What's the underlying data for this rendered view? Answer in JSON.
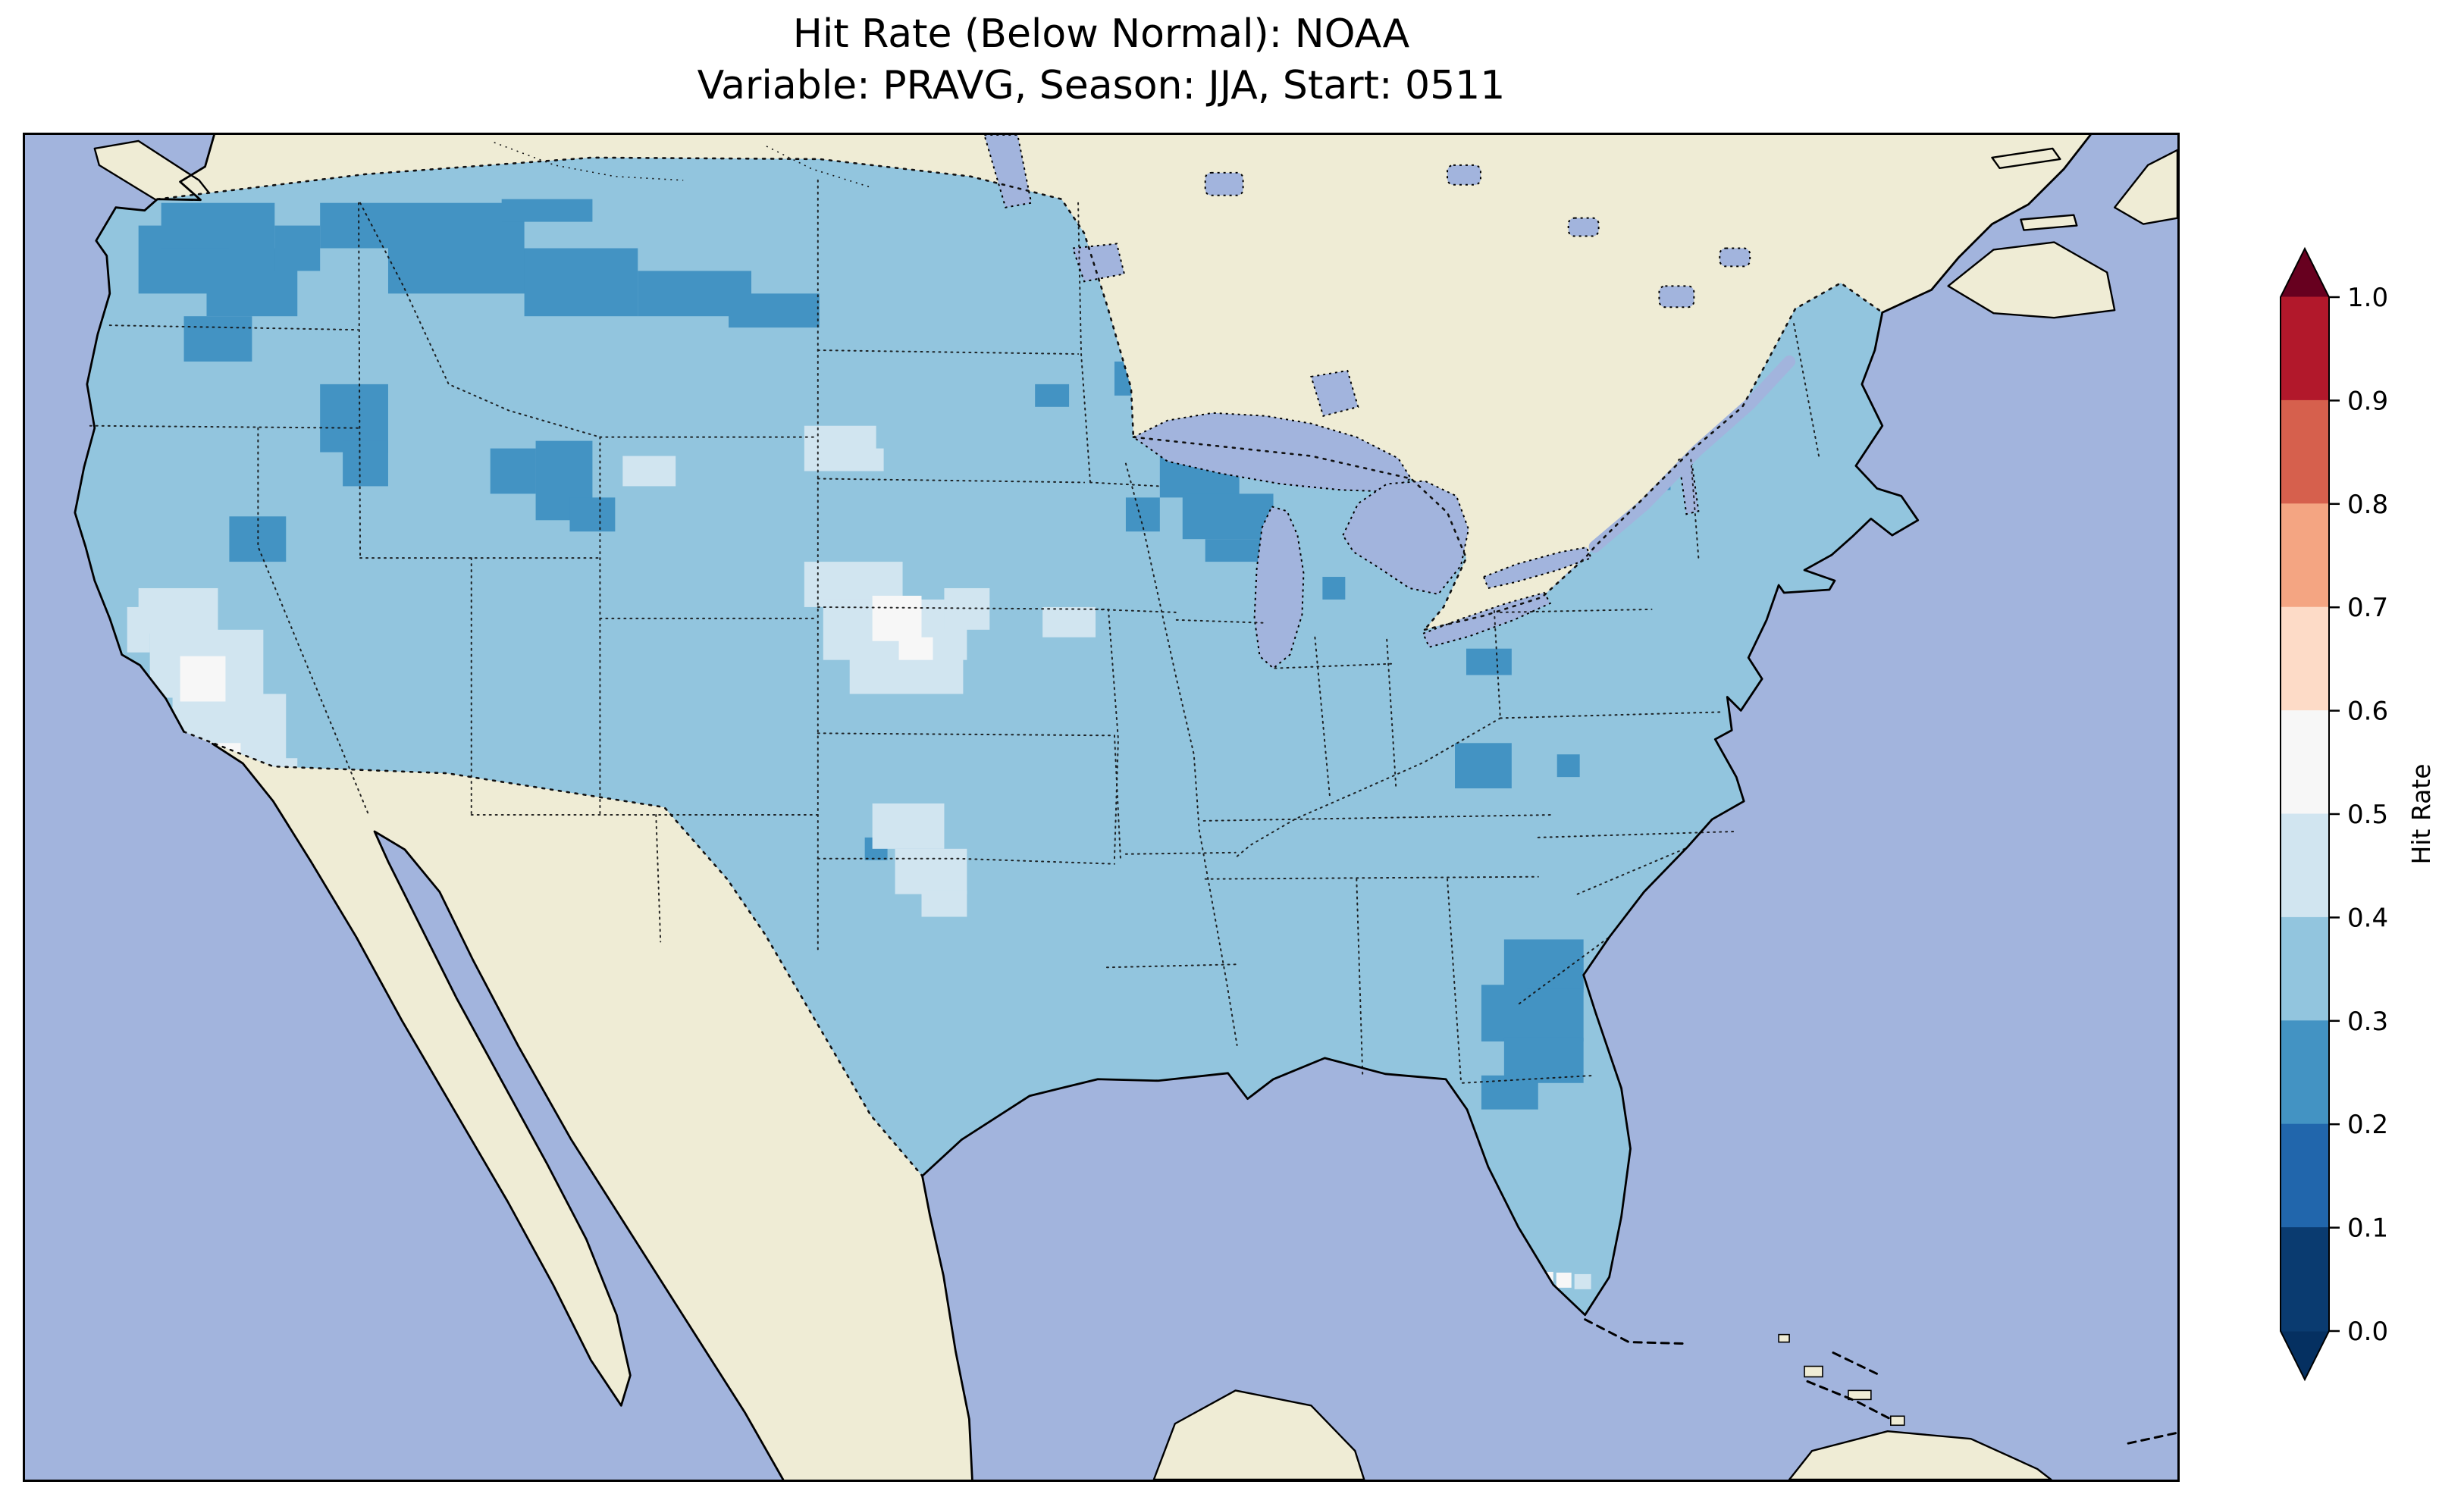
{
  "figure": {
    "title_line1": "Hit Rate (Below Normal): NOAA",
    "title_line2": "Variable: PRAVG, Season: JJA, Start: 0511"
  },
  "colorbar": {
    "label": "Hit Rate",
    "tick_labels": [
      "1.0",
      "0.9",
      "0.8",
      "0.7",
      "0.6",
      "0.5",
      "0.4",
      "0.3",
      "0.2",
      "0.1",
      "0.0"
    ],
    "segments_top_to_bottom": [
      "#b2182b",
      "#d6604d",
      "#f4a582",
      "#fddbc7",
      "#f7f7f7",
      "#d1e5f0",
      "#92c5de",
      "#4393c3",
      "#2166ac",
      "#0a3b70"
    ],
    "extend_over_color": "#67001f",
    "extend_under_color": "#053061",
    "orientation": "vertical",
    "extend": "both"
  },
  "map_colors": {
    "ocean": "#a2b4dd",
    "land": "#efecd5",
    "lake": "#a2b4dd",
    "coastline": "#000000",
    "border": "#111111"
  },
  "chart_data": {
    "type": "heatmap",
    "title": "Hit Rate (Below Normal): NOAA",
    "subtitle": "Variable: PRAVG, Season: JJA, Start: 0511",
    "colorbar_label": "Hit Rate",
    "value_range": [
      0.0,
      1.0
    ],
    "tick_step": 0.1,
    "legend_position": "right",
    "projection": "conus-lambert-conformal",
    "bins": [
      {
        "range": [
          0.0,
          0.1
        ],
        "color": "#0a3b70"
      },
      {
        "range": [
          0.1,
          0.2
        ],
        "color": "#2166ac"
      },
      {
        "range": [
          0.2,
          0.3
        ],
        "color": "#4393c3"
      },
      {
        "range": [
          0.3,
          0.4
        ],
        "color": "#92c5de"
      },
      {
        "range": [
          0.4,
          0.5
        ],
        "color": "#d1e5f0"
      },
      {
        "range": [
          0.5,
          0.6
        ],
        "color": "#f7f7f7"
      },
      {
        "range": [
          0.6,
          0.7
        ],
        "color": "#fddbc7"
      },
      {
        "range": [
          0.7,
          0.8
        ],
        "color": "#f4a582"
      },
      {
        "range": [
          0.8,
          0.9
        ],
        "color": "#d6604d"
      },
      {
        "range": [
          0.9,
          1.0
        ],
        "color": "#b2182b"
      }
    ],
    "base": {
      "range": [
        0.3,
        0.4
      ],
      "value": 0.35,
      "note": "dominant hit-rate bin across most of CONUS"
    },
    "regions": [
      {
        "name": "pacific-northwest",
        "range": [
          0.2,
          0.3
        ],
        "value": 0.25,
        "rects": [
          [
            150,
            120,
            120,
            90
          ],
          [
            180,
            90,
            150,
            60
          ],
          [
            240,
            150,
            120,
            90
          ],
          [
            210,
            240,
            90,
            60
          ],
          [
            330,
            120,
            60,
            60
          ]
        ]
      },
      {
        "name": "northern-rockies-border",
        "range": [
          0.2,
          0.3
        ],
        "value": 0.25,
        "rects": [
          [
            390,
            90,
            270,
            60
          ],
          [
            480,
            150,
            240,
            60
          ],
          [
            660,
            150,
            150,
            90
          ],
          [
            810,
            180,
            150,
            60
          ],
          [
            930,
            210,
            120,
            45
          ],
          [
            630,
            85,
            120,
            30
          ]
        ]
      },
      {
        "name": "central-idaho",
        "range": [
          0.2,
          0.3
        ],
        "value": 0.25,
        "rects": [
          [
            390,
            330,
            90,
            90
          ],
          [
            420,
            405,
            60,
            60
          ]
        ]
      },
      {
        "name": "bighorn-mountains",
        "range": [
          0.2,
          0.3
        ],
        "value": 0.25,
        "rects": [
          [
            675,
            405,
            75,
            105
          ],
          [
            720,
            480,
            60,
            45
          ]
        ]
      },
      {
        "name": "northeast-nevada",
        "range": [
          0.2,
          0.3
        ],
        "value": 0.25,
        "rects": [
          [
            270,
            505,
            75,
            60
          ]
        ]
      },
      {
        "name": "utah-wasatch",
        "range": [
          0.2,
          0.3
        ],
        "value": 0.25,
        "rects": [
          [
            615,
            415,
            60,
            60
          ]
        ]
      },
      {
        "name": "upper-midwest-wisconsin",
        "range": [
          0.2,
          0.3
        ],
        "value": 0.25,
        "rects": [
          [
            1500,
            420,
            105,
            60
          ],
          [
            1530,
            475,
            120,
            60
          ],
          [
            1455,
            480,
            45,
            45
          ],
          [
            1560,
            535,
            75,
            30
          ],
          [
            1440,
            300,
            60,
            45
          ],
          [
            1335,
            330,
            45,
            30
          ]
        ]
      },
      {
        "name": "michigan-cell",
        "range": [
          0.2,
          0.3
        ],
        "value": 0.25,
        "rects": [
          [
            1715,
            585,
            30,
            30
          ]
        ]
      },
      {
        "name": "new-york",
        "range": [
          0.2,
          0.3
        ],
        "value": 0.25,
        "rects": [
          [
            2085,
            385,
            105,
            60
          ],
          [
            2115,
            440,
            60,
            30
          ]
        ]
      },
      {
        "name": "ohio-cells",
        "range": [
          0.2,
          0.3
        ],
        "value": 0.25,
        "rects": [
          [
            1905,
            680,
            60,
            35
          ]
        ]
      },
      {
        "name": "ohio-valley-south",
        "range": [
          0.2,
          0.3
        ],
        "value": 0.25,
        "rects": [
          [
            1890,
            805,
            75,
            60
          ],
          [
            2025,
            820,
            30,
            30
          ]
        ]
      },
      {
        "name": "georgia-carolinas-florida",
        "range": [
          0.2,
          0.3
        ],
        "value": 0.25,
        "rects": [
          [
            1955,
            1065,
            105,
            70
          ],
          [
            1925,
            1125,
            135,
            75
          ],
          [
            1955,
            1195,
            105,
            60
          ],
          [
            1925,
            1245,
            75,
            45
          ],
          [
            1985,
            1085,
            75,
            45
          ]
        ]
      },
      {
        "name": "west-texas",
        "range": [
          0.2,
          0.3
        ],
        "value": 0.25,
        "rects": [
          [
            905,
            1055,
            60,
            100
          ],
          [
            935,
            1145,
            35,
            30
          ]
        ]
      },
      {
        "name": "rio-grande-texas",
        "range": [
          0.2,
          0.3
        ],
        "value": 0.25,
        "rects": [
          [
            1075,
            1345,
            60,
            30
          ],
          [
            1100,
            1400,
            35,
            30
          ]
        ]
      },
      {
        "name": "kansas-cell",
        "range": [
          0.2,
          0.3
        ],
        "value": 0.25,
        "rects": [
          [
            1110,
            930,
            30,
            30
          ]
        ]
      },
      {
        "name": "mojave-great-basin",
        "range": [
          0.4,
          0.5
        ],
        "value": 0.45,
        "rects": [
          [
            150,
            600,
            105,
            60
          ],
          [
            165,
            655,
            150,
            90
          ],
          [
            195,
            740,
            150,
            90
          ],
          [
            255,
            825,
            105,
            60
          ],
          [
            135,
            625,
            30,
            60
          ],
          [
            330,
            860,
            60,
            40
          ]
        ]
      },
      {
        "name": "arizona-new-mexico",
        "range": [
          0.4,
          0.5
        ],
        "value": 0.45,
        "rects": [
          [
            490,
            885,
            100,
            60
          ],
          [
            520,
            940,
            120,
            65
          ],
          [
            580,
            1000,
            95,
            60
          ],
          [
            645,
            1055,
            60,
            35
          ]
        ]
      },
      {
        "name": "central-plains",
        "range": [
          0.4,
          0.5
        ],
        "value": 0.45,
        "rects": [
          [
            1030,
            565,
            130,
            60
          ],
          [
            1055,
            615,
            190,
            80
          ],
          [
            1090,
            690,
            150,
            50
          ],
          [
            1215,
            600,
            60,
            55
          ]
        ]
      },
      {
        "name": "dakotas",
        "range": [
          0.4,
          0.5
        ],
        "value": 0.45,
        "rects": [
          [
            1030,
            385,
            95,
            60
          ],
          [
            1090,
            415,
            45,
            30
          ]
        ]
      },
      {
        "name": "southern-plains",
        "range": [
          0.4,
          0.5
        ],
        "value": 0.45,
        "rects": [
          [
            1120,
            885,
            95,
            60
          ],
          [
            1150,
            945,
            95,
            60
          ],
          [
            1185,
            1000,
            60,
            35
          ]
        ]
      },
      {
        "name": "wyoming-basin",
        "range": [
          0.4,
          0.5
        ],
        "value": 0.45,
        "rects": [
          [
            790,
            425,
            70,
            40
          ]
        ]
      },
      {
        "name": "iowa-missouri",
        "range": [
          0.4,
          0.5
        ],
        "value": 0.45,
        "rects": [
          [
            1345,
            625,
            70,
            40
          ]
        ]
      },
      {
        "name": "florida-keys-pale",
        "range": [
          0.4,
          0.5
        ],
        "value": 0.45,
        "rects": [
          [
            2048,
            1508,
            22,
            20
          ]
        ]
      },
      {
        "name": "great-basin-core",
        "range": [
          0.5,
          0.6
        ],
        "value": 0.55,
        "rects": [
          [
            205,
            690,
            60,
            60
          ],
          [
            240,
            805,
            45,
            30
          ]
        ]
      },
      {
        "name": "plains-core",
        "range": [
          0.5,
          0.6
        ],
        "value": 0.55,
        "rects": [
          [
            1120,
            610,
            65,
            60
          ],
          [
            1155,
            665,
            45,
            30
          ]
        ]
      },
      {
        "name": "florida-tip-specks",
        "range": [
          0.5,
          0.6
        ],
        "value": 0.55,
        "rects": [
          [
            2000,
            1505,
            20,
            20
          ],
          [
            2024,
            1506,
            20,
            20
          ]
        ]
      }
    ]
  }
}
